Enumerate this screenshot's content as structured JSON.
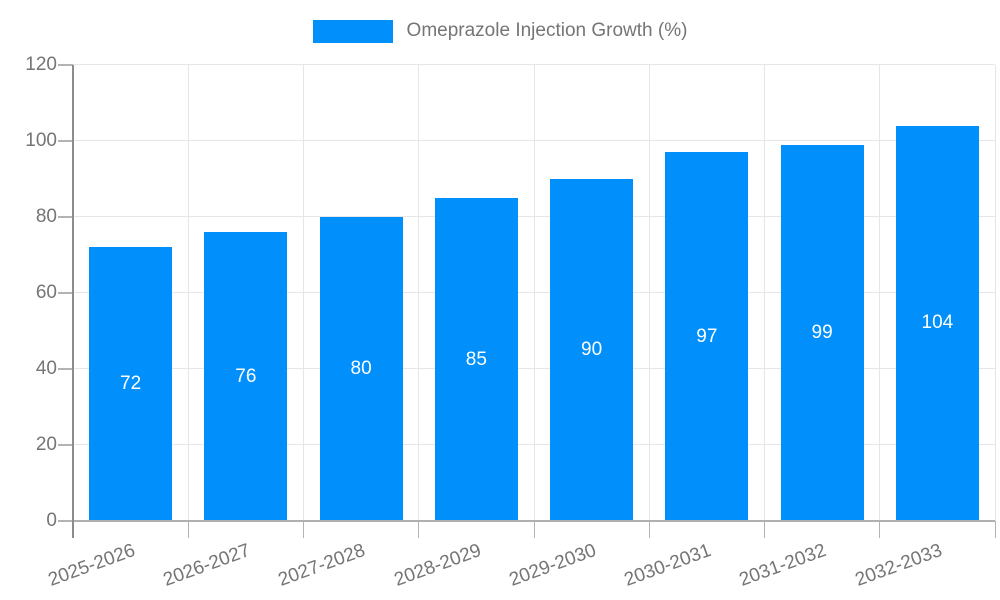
{
  "chart_data": {
    "type": "bar",
    "title": "",
    "legend_position": "top",
    "legend_entries": [
      {
        "label": "Omeprazole Injection Growth (%)",
        "color": "#008ffb"
      }
    ],
    "categories": [
      "2025-2026",
      "2026-2027",
      "2027-2028",
      "2028-2029",
      "2029-2030",
      "2030-2031",
      "2031-2032",
      "2032-2033"
    ],
    "series": [
      {
        "name": "Omeprazole Injection Growth (%)",
        "values": [
          72,
          76,
          80,
          85,
          90,
          97,
          99,
          104
        ]
      }
    ],
    "bar_value_labels": [
      "72",
      "76",
      "80",
      "85",
      "90",
      "97",
      "99",
      "104"
    ],
    "xlabel": "",
    "ylabel": "",
    "ylim": [
      0,
      120
    ],
    "yticks": [
      0,
      20,
      40,
      60,
      80,
      100,
      120
    ],
    "grid": true,
    "colors": {
      "bar": "#008ffb",
      "bar_label": "#ffffff",
      "axis_text": "#757575",
      "gridline": "#e6e6e6",
      "y_axis_line": "#8c8c8c",
      "x_axis_line": "#b0b0b0",
      "tick": "#b3b3b3",
      "background": "#ffffff"
    }
  }
}
